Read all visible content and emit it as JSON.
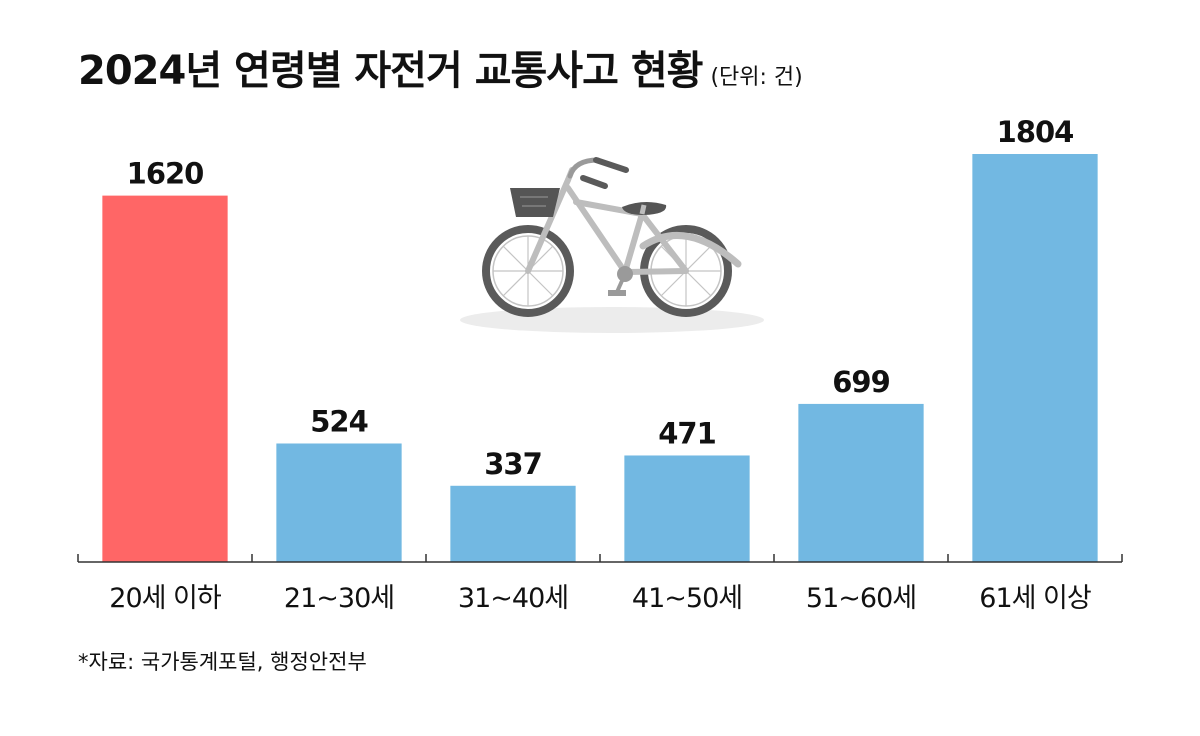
{
  "title": "2024년 연령별 자전거 교통사고 현황",
  "unit_note": "(단위: 건)",
  "source": "*자료: 국가통계포털, 행정안전부",
  "colors": {
    "highlight": "#FF6666",
    "bar": "#72B8E2",
    "axis": "#333333"
  },
  "icons": [
    "bicycle-icon"
  ],
  "chart_data": {
    "type": "bar",
    "categories": [
      "20세 이하",
      "21~30세",
      "31~40세",
      "41~50세",
      "51~60세",
      "61세 이상"
    ],
    "values": [
      1620,
      524,
      337,
      471,
      699,
      1804
    ],
    "highlight_index": 0,
    "ylim": [
      0,
      1804
    ],
    "title": "2024년 연령별 자전거 교통사고 현황",
    "xlabel": "",
    "ylabel": "",
    "grid": false,
    "data_labels": true
  }
}
